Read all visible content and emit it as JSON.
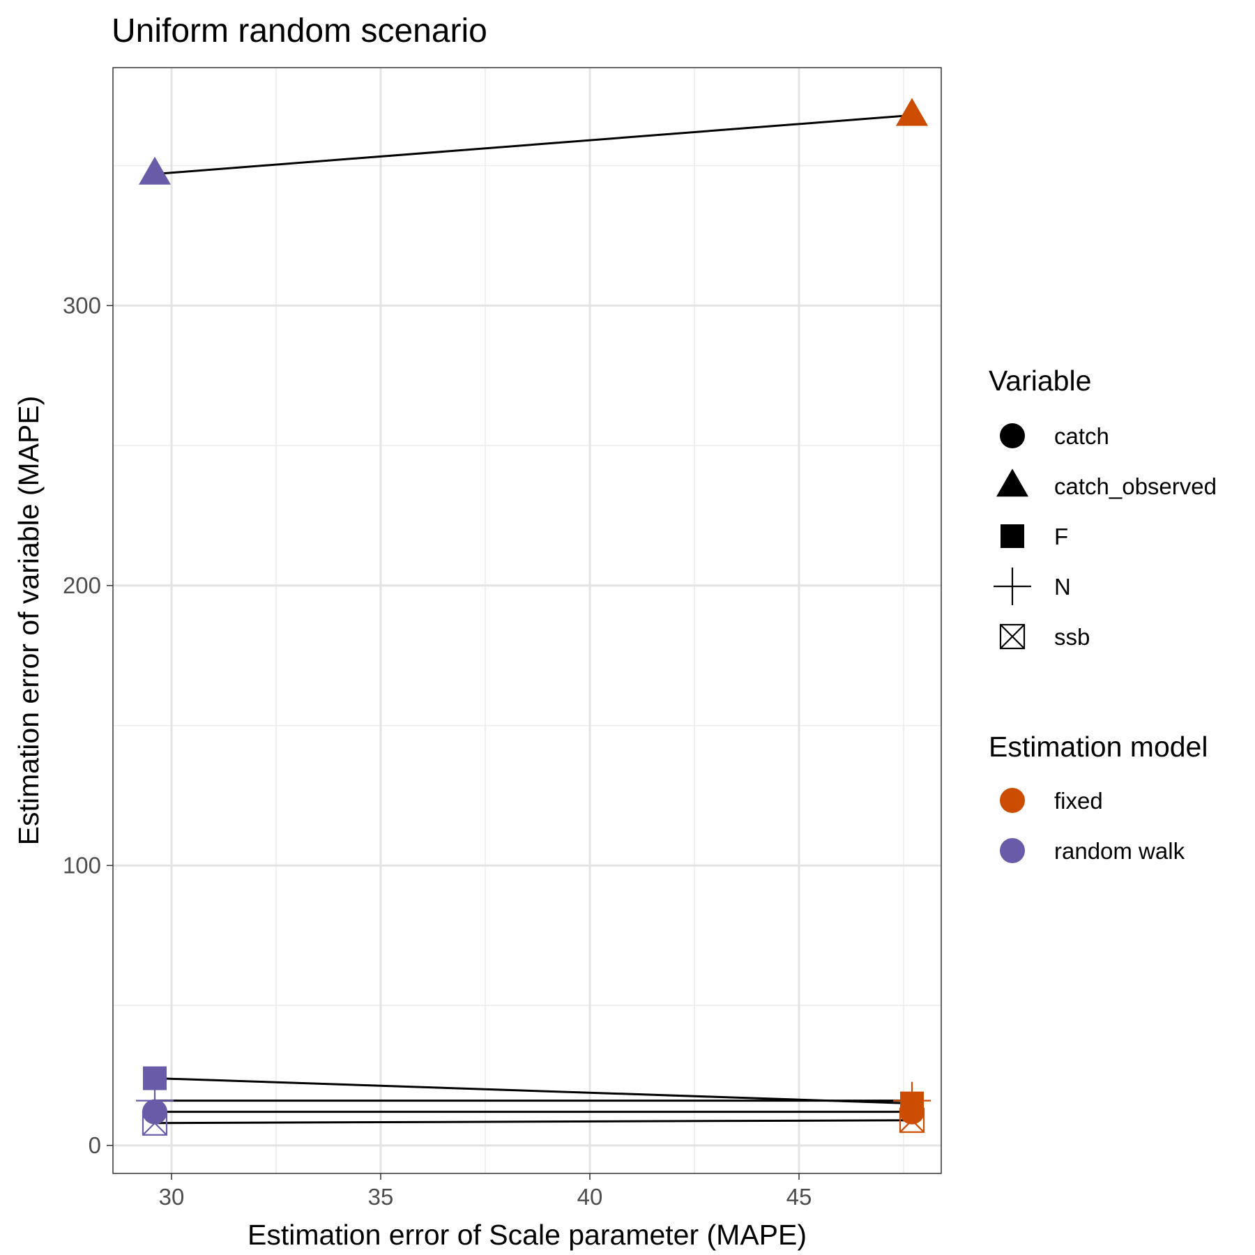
{
  "chart_data": {
    "type": "scatter",
    "title": "Uniform random scenario",
    "xlabel": "Estimation error of Scale parameter (MAPE)",
    "ylabel": "Estimation error of variable (MAPE)",
    "xlim": [
      28.6,
      48.4
    ],
    "ylim": [
      -10,
      385
    ],
    "x_ticks": [
      30,
      35,
      40,
      45
    ],
    "y_ticks": [
      0,
      100,
      200,
      300
    ],
    "grid": true,
    "legend_position": "right",
    "shape_legend": {
      "title": "Variable",
      "items": [
        {
          "label": "catch",
          "shape": "circle"
        },
        {
          "label": "catch_observed",
          "shape": "triangle"
        },
        {
          "label": "F",
          "shape": "square"
        },
        {
          "label": "N",
          "shape": "plus"
        },
        {
          "label": "ssb",
          "shape": "boxed-x"
        }
      ]
    },
    "color_legend": {
      "title": "Estimation model",
      "items": [
        {
          "label": "fixed",
          "color": "#cc4c02"
        },
        {
          "label": "random walk",
          "color": "#6a5ba8"
        }
      ]
    },
    "series": [
      {
        "variable": "catch_observed",
        "shape": "triangle",
        "points": [
          {
            "model": "random walk",
            "x": 29.6,
            "y": 347
          },
          {
            "model": "fixed",
            "x": 47.7,
            "y": 368
          }
        ]
      },
      {
        "variable": "F",
        "shape": "square",
        "points": [
          {
            "model": "random walk",
            "x": 29.6,
            "y": 24
          },
          {
            "model": "fixed",
            "x": 47.7,
            "y": 15
          }
        ]
      },
      {
        "variable": "N",
        "shape": "plus",
        "points": [
          {
            "model": "random walk",
            "x": 29.6,
            "y": 16
          },
          {
            "model": "fixed",
            "x": 47.7,
            "y": 16
          }
        ]
      },
      {
        "variable": "catch",
        "shape": "circle",
        "points": [
          {
            "model": "random walk",
            "x": 29.6,
            "y": 12
          },
          {
            "model": "fixed",
            "x": 47.7,
            "y": 12
          }
        ]
      },
      {
        "variable": "ssb",
        "shape": "boxed-x",
        "points": [
          {
            "model": "random walk",
            "x": 29.6,
            "y": 8
          },
          {
            "model": "fixed",
            "x": 47.7,
            "y": 9
          }
        ]
      }
    ]
  }
}
